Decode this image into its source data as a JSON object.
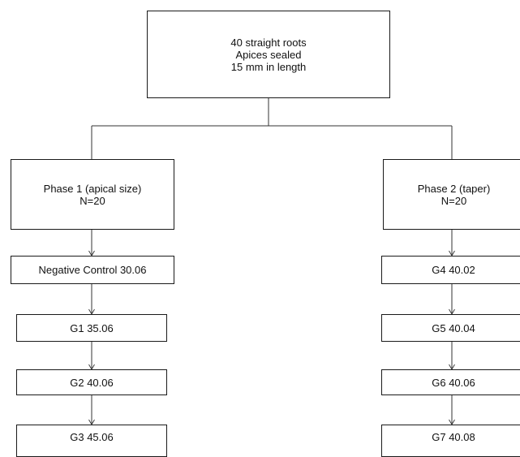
{
  "diagram": {
    "root": {
      "lines": [
        "40 straight roots",
        "Apices sealed",
        "15 mm in length"
      ]
    },
    "phase1": {
      "lines": [
        "Phase 1 (apical size)",
        "N=20"
      ],
      "groups": [
        "Negative Control 30.06",
        "G1 35.06",
        "G2 40.06",
        "G3 45.06"
      ]
    },
    "phase2": {
      "lines": [
        "Phase 2 (taper)",
        "N=20"
      ],
      "groups": [
        "G4 40.02",
        "G5 40.04",
        "G6 40.06",
        "G7 40.08"
      ]
    }
  }
}
